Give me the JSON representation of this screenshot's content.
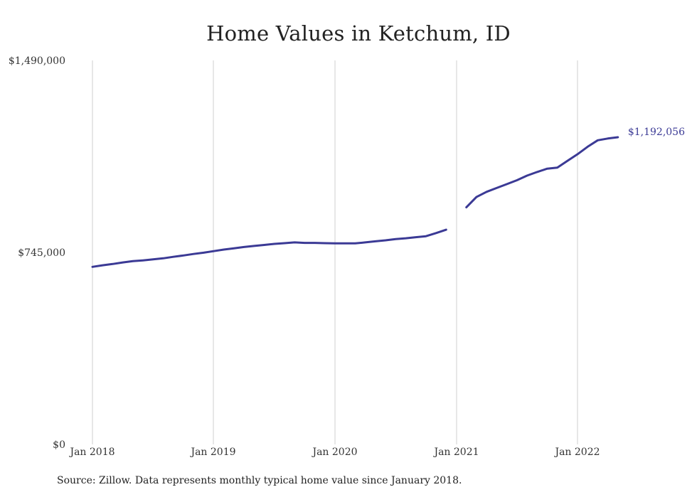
{
  "chart_data": {
    "type": "line",
    "title": "Home Values in Ketchum, ID",
    "xlabel": "",
    "ylabel": "",
    "source": "Source: Zillow. Data represents monthly typical home value since January 2018.",
    "x_tick_labels": [
      "Jan 2018",
      "Jan 2019",
      "Jan 2020",
      "Jan 2021",
      "Jan 2022"
    ],
    "y_tick_labels": [
      "$0",
      "$745,000",
      "$1,490,000"
    ],
    "y_ticks": [
      0,
      745000,
      1490000
    ],
    "ylim": [
      0,
      1490000
    ],
    "xlim": [
      "2018-01",
      "2022-12"
    ],
    "grid": "vertical",
    "line_color": "#3b3a95",
    "grid_color": "#cfcfcf",
    "end_label": "$1,192,056",
    "series": [
      {
        "segments": [
          {
            "x": [
              "2018-01",
              "2018-02",
              "2018-03",
              "2018-04",
              "2018-05",
              "2018-06",
              "2018-07",
              "2018-08",
              "2018-09",
              "2018-10",
              "2018-11",
              "2018-12",
              "2019-01",
              "2019-02",
              "2019-03",
              "2019-04",
              "2019-05",
              "2019-06",
              "2019-07",
              "2019-08",
              "2019-09",
              "2019-10",
              "2019-11",
              "2019-12",
              "2020-01",
              "2020-02",
              "2020-03",
              "2020-04",
              "2020-05",
              "2020-06",
              "2020-07",
              "2020-08",
              "2020-09",
              "2020-10",
              "2020-11",
              "2020-12"
            ],
            "values": [
              689000,
              695000,
              700000,
              706000,
              711000,
              714000,
              718000,
              722000,
              728000,
              733000,
              739000,
              744000,
              750000,
              756000,
              761000,
              766000,
              770000,
              774000,
              778000,
              781000,
              784000,
              782000,
              782000,
              781000,
              780000,
              780000,
              780000,
              784000,
              788000,
              792000,
              797000,
              800000,
              804000,
              808000,
              820000,
              833000
            ]
          },
          {
            "x": [
              "2021-02",
              "2021-03",
              "2021-04",
              "2021-05",
              "2021-06",
              "2021-07",
              "2021-08",
              "2021-09",
              "2021-10",
              "2021-11",
              "2021-12",
              "2022-01",
              "2022-02",
              "2022-03",
              "2022-04",
              "2022-05"
            ],
            "values": [
              920000,
              960000,
              980000,
              995000,
              1010000,
              1025000,
              1043000,
              1057000,
              1070000,
              1074000,
              1100000,
              1126000,
              1155000,
              1180000,
              1187000,
              1192056
            ]
          }
        ]
      }
    ]
  }
}
